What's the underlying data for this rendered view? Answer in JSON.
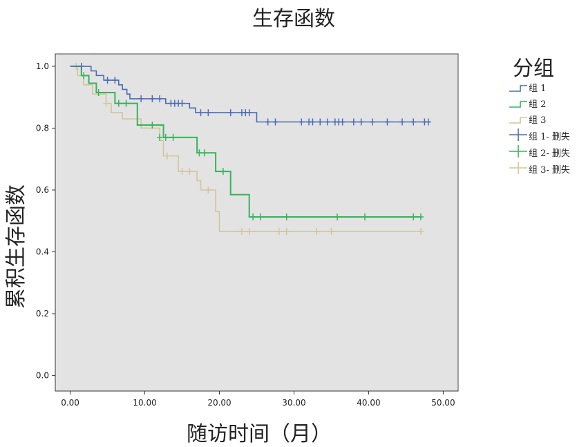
{
  "chart_data": {
    "type": "line",
    "title": "生存函数",
    "xlabel": "随访时间（月）",
    "ylabel": "累积生存函数",
    "xlim": [
      -2,
      52
    ],
    "ylim": [
      -0.05,
      1.04
    ],
    "xticks": [
      "0.00",
      "10.00",
      "20.00",
      "30.00",
      "40.00",
      "50.00"
    ],
    "yticks": [
      "0.0",
      "0.2",
      "0.4",
      "0.6",
      "0.8",
      "1.0"
    ],
    "xtick_values": [
      0,
      10,
      20,
      30,
      40,
      50
    ],
    "ytick_values": [
      0,
      0.2,
      0.4,
      0.6,
      0.8,
      1.0
    ],
    "grid": false,
    "legend_title": "分组",
    "legend_position": "right",
    "legend": [
      "组 1",
      "组 2",
      "组 3",
      "组 1- 删失",
      "组 2- 删失",
      "组 3- 删失"
    ],
    "colors": {
      "组 1": "#4a6bb5",
      "组 2": "#35b35a",
      "组 3": "#d3c59a",
      "plot_bg": "#e3e3e3"
    },
    "series": [
      {
        "name": "组 1",
        "steps": [
          [
            0,
            1.0
          ],
          [
            2.8,
            0.985
          ],
          [
            3.5,
            0.97
          ],
          [
            4.5,
            0.955
          ],
          [
            6.5,
            0.94
          ],
          [
            7.0,
            0.925
          ],
          [
            7.6,
            0.91
          ],
          [
            8.0,
            0.895
          ],
          [
            12.8,
            0.88
          ],
          [
            16.0,
            0.865
          ],
          [
            16.8,
            0.85
          ],
          [
            25.0,
            0.82
          ],
          [
            48.3,
            0.82
          ]
        ],
        "censored": [
          [
            1.5,
            1.0
          ],
          [
            5.0,
            0.955
          ],
          [
            6.0,
            0.955
          ],
          [
            9.5,
            0.895
          ],
          [
            11.0,
            0.895
          ],
          [
            12.0,
            0.895
          ],
          [
            13.5,
            0.88
          ],
          [
            14.0,
            0.88
          ],
          [
            14.5,
            0.88
          ],
          [
            15.0,
            0.88
          ],
          [
            17.5,
            0.85
          ],
          [
            18.5,
            0.85
          ],
          [
            21.5,
            0.85
          ],
          [
            23.0,
            0.85
          ],
          [
            23.5,
            0.85
          ],
          [
            24.0,
            0.85
          ],
          [
            26.5,
            0.82
          ],
          [
            27.5,
            0.82
          ],
          [
            31.0,
            0.82
          ],
          [
            32.0,
            0.82
          ],
          [
            32.5,
            0.82
          ],
          [
            33.5,
            0.82
          ],
          [
            34.5,
            0.82
          ],
          [
            35.5,
            0.82
          ],
          [
            36.0,
            0.82
          ],
          [
            36.5,
            0.82
          ],
          [
            38.0,
            0.82
          ],
          [
            39.0,
            0.82
          ],
          [
            40.5,
            0.82
          ],
          [
            42.5,
            0.82
          ],
          [
            44.5,
            0.82
          ],
          [
            46.0,
            0.82
          ],
          [
            47.5,
            0.82
          ],
          [
            48.0,
            0.82
          ]
        ]
      },
      {
        "name": "组 2",
        "steps": [
          [
            0,
            1.0
          ],
          [
            1.5,
            0.97
          ],
          [
            2.5,
            0.945
          ],
          [
            3.5,
            0.915
          ],
          [
            6.0,
            0.88
          ],
          [
            9.0,
            0.81
          ],
          [
            12.5,
            0.77
          ],
          [
            17.0,
            0.72
          ],
          [
            19.5,
            0.66
          ],
          [
            21.5,
            0.585
          ],
          [
            24.0,
            0.513
          ],
          [
            47.1,
            0.513
          ]
        ],
        "censored": [
          [
            1.8,
            0.97
          ],
          [
            3.8,
            0.915
          ],
          [
            6.5,
            0.88
          ],
          [
            7.5,
            0.88
          ],
          [
            11.0,
            0.81
          ],
          [
            12.0,
            0.77
          ],
          [
            12.8,
            0.77
          ],
          [
            13.8,
            0.77
          ],
          [
            17.3,
            0.72
          ],
          [
            18.0,
            0.72
          ],
          [
            20.5,
            0.66
          ],
          [
            24.5,
            0.513
          ],
          [
            25.5,
            0.513
          ],
          [
            29.0,
            0.513
          ],
          [
            35.8,
            0.513
          ],
          [
            39.5,
            0.513
          ],
          [
            46.0,
            0.513
          ],
          [
            47.0,
            0.513
          ]
        ]
      },
      {
        "name": "组 3",
        "steps": [
          [
            0,
            1.0
          ],
          [
            1.0,
            0.97
          ],
          [
            1.8,
            0.94
          ],
          [
            3.0,
            0.91
          ],
          [
            4.8,
            0.88
          ],
          [
            5.5,
            0.85
          ],
          [
            7.0,
            0.83
          ],
          [
            9.5,
            0.8
          ],
          [
            12.0,
            0.76
          ],
          [
            12.5,
            0.71
          ],
          [
            14.5,
            0.66
          ],
          [
            17.0,
            0.63
          ],
          [
            17.5,
            0.6
          ],
          [
            19.5,
            0.53
          ],
          [
            20.0,
            0.466
          ],
          [
            47.2,
            0.466
          ]
        ],
        "censored": [
          [
            0.8,
            1.0
          ],
          [
            4.8,
            0.88
          ],
          [
            13.0,
            0.71
          ],
          [
            15.0,
            0.66
          ],
          [
            16.0,
            0.66
          ],
          [
            18.5,
            0.6
          ],
          [
            23.0,
            0.466
          ],
          [
            24.0,
            0.466
          ],
          [
            28.0,
            0.466
          ],
          [
            29.0,
            0.466
          ],
          [
            33.0,
            0.466
          ],
          [
            35.0,
            0.466
          ],
          [
            47.0,
            0.466
          ]
        ]
      }
    ]
  }
}
